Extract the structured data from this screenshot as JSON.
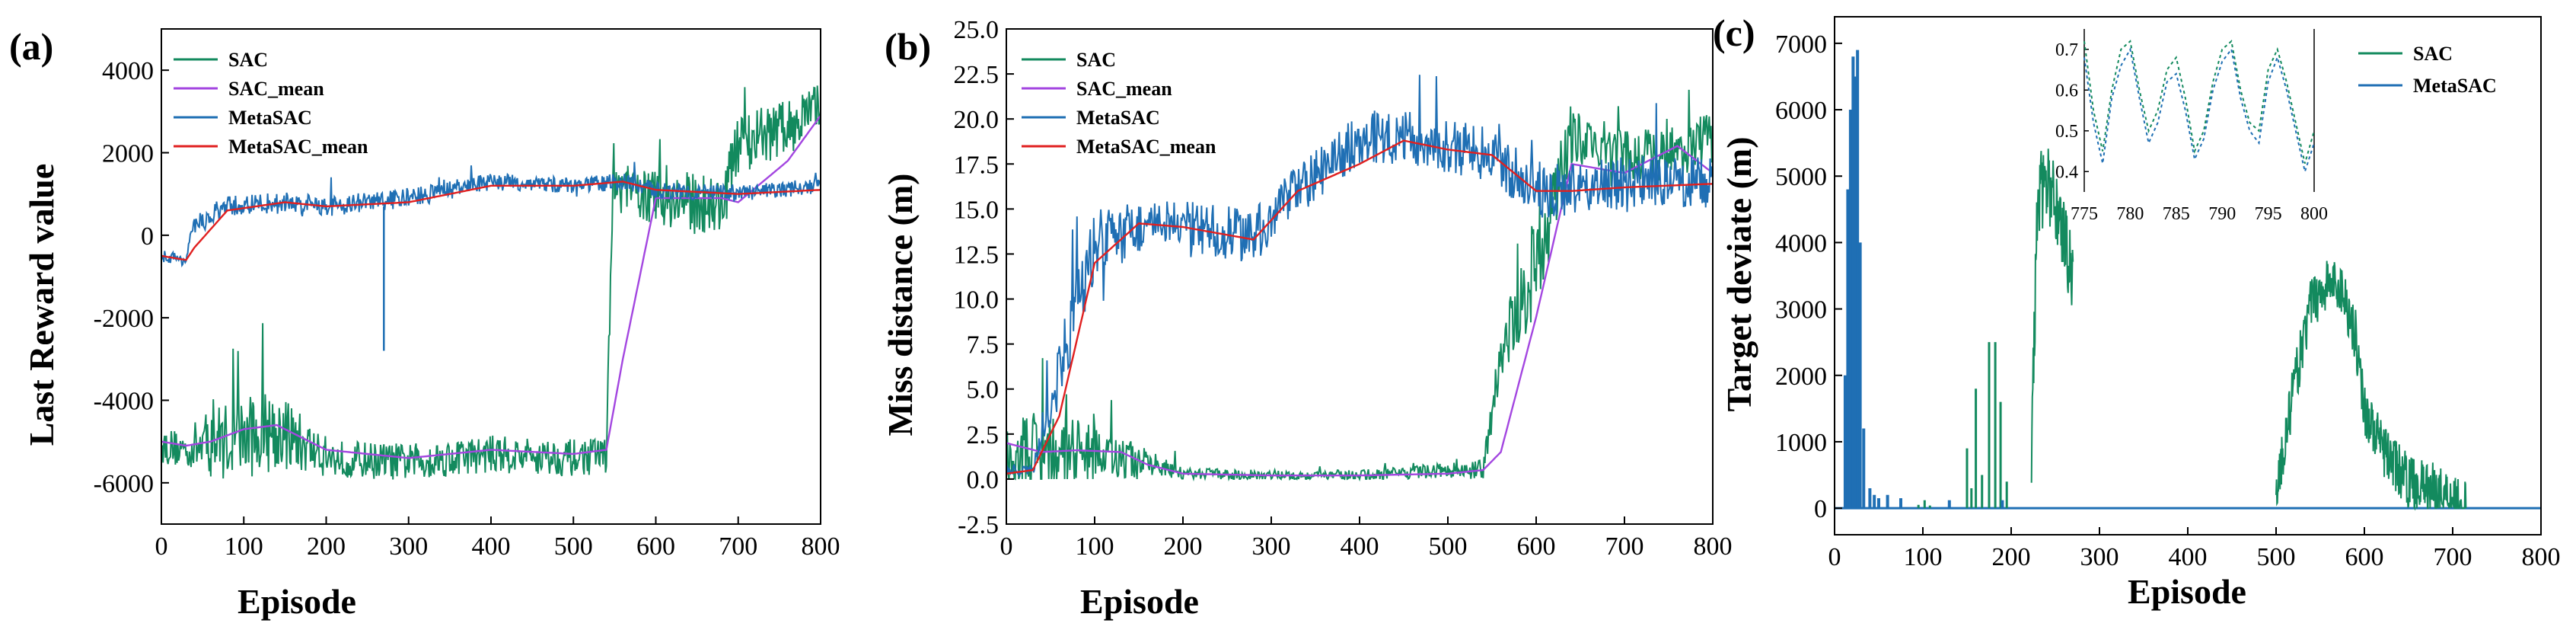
{
  "chart_data": [
    {
      "type": "line",
      "panel_label": "(a)",
      "title": "",
      "xlabel": "Episode",
      "ylabel": "Last Reward value",
      "xlim": [
        0,
        800
      ],
      "ylim": [
        -7000,
        5000
      ],
      "xticks": [
        "0",
        "100",
        "200",
        "300",
        "400",
        "500",
        "600",
        "700",
        "800"
      ],
      "yticks": [
        "-6000",
        "-4000",
        "-2000",
        "0",
        "2000",
        "4000"
      ],
      "legend_position": "top-left",
      "series": [
        {
          "name": "SAC",
          "color": "#138a5e",
          "kind": "noisy",
          "x": [
            0,
            30,
            60,
            100,
            140,
            200,
            300,
            400,
            500,
            540,
            548,
            560,
            600,
            680,
            700,
            760,
            800
          ],
          "values": [
            -5100,
            -5200,
            -5000,
            -4900,
            -4700,
            -5400,
            -5500,
            -5300,
            -5400,
            -5300,
            1100,
            1100,
            900,
            700,
            2200,
            2600,
            3200
          ],
          "noise": [
            450,
            450,
            900,
            1000,
            1000,
            450,
            450,
            450,
            450,
            450,
            500,
            600,
            700,
            800,
            700,
            700,
            500
          ]
        },
        {
          "name": "SAC_mean",
          "color": "#a346e0",
          "kind": "smooth",
          "x": [
            0,
            30,
            60,
            100,
            140,
            200,
            300,
            400,
            500,
            540,
            560,
            600,
            680,
            700,
            760,
            800
          ],
          "values": [
            -5000,
            -5100,
            -5000,
            -4700,
            -4600,
            -5200,
            -5400,
            -5200,
            -5300,
            -5200,
            -3000,
            900,
            900,
            800,
            1800,
            2900
          ]
        },
        {
          "name": "MetaSAC",
          "color": "#1f6fb4",
          "kind": "noisy",
          "x": [
            0,
            30,
            40,
            80,
            150,
            200,
            300,
            400,
            500,
            560,
            600,
            700,
            800
          ],
          "values": [
            -500,
            -600,
            200,
            700,
            800,
            700,
            900,
            1300,
            1200,
            1300,
            1100,
            1000,
            1200
          ],
          "noise": [
            150,
            150,
            250,
            250,
            250,
            250,
            250,
            200,
            200,
            200,
            200,
            200,
            200
          ]
        },
        {
          "name": "MetaSAC_mean",
          "color": "#e02020",
          "kind": "smooth",
          "x": [
            0,
            30,
            40,
            80,
            150,
            200,
            300,
            400,
            500,
            560,
            600,
            700,
            800
          ],
          "values": [
            -500,
            -600,
            -300,
            600,
            800,
            700,
            800,
            1200,
            1200,
            1300,
            1100,
            1000,
            1100
          ]
        }
      ]
    },
    {
      "type": "line",
      "panel_label": "(b)",
      "title": "",
      "xlabel": "Episode",
      "ylabel": "Miss distance (m)",
      "xlim": [
        0,
        800
      ],
      "ylim": [
        -2.5,
        25
      ],
      "xticks": [
        "0",
        "100",
        "200",
        "300",
        "400",
        "500",
        "600",
        "700",
        "800"
      ],
      "yticks": [
        "-2.5",
        "0.0",
        "2.5",
        "5.0",
        "7.5",
        "10.0",
        "12.5",
        "15.0",
        "17.5",
        "20.0",
        "22.5",
        "25.0"
      ],
      "legend_position": "top-left",
      "series": [
        {
          "name": "SAC",
          "color": "#138a5e",
          "kind": "noisy",
          "x": [
            0,
            40,
            80,
            130,
            200,
            300,
            400,
            500,
            540,
            560,
            600,
            640,
            700,
            760,
            800
          ],
          "values": [
            1.5,
            1.2,
            1.5,
            1.2,
            0.3,
            0.2,
            0.2,
            0.5,
            0.5,
            7,
            12,
            19,
            18,
            18,
            19
          ],
          "noise": [
            2.5,
            2.5,
            2,
            1.2,
            0.3,
            0.3,
            0.3,
            0.4,
            0.6,
            1.5,
            3,
            1.5,
            1.5,
            1.5,
            1.5
          ]
        },
        {
          "name": "SAC_mean",
          "color": "#a346e0",
          "kind": "smooth",
          "x": [
            0,
            40,
            80,
            130,
            160,
            200,
            300,
            400,
            500,
            540,
            560,
            600,
            640,
            700,
            760,
            800
          ],
          "values": [
            2.0,
            1.5,
            1.6,
            1.5,
            0.8,
            0.3,
            0.2,
            0.2,
            0.3,
            0.5,
            1.5,
            9,
            17.5,
            17,
            18.5,
            17
          ]
        },
        {
          "name": "MetaSAC",
          "color": "#1f6fb4",
          "kind": "noisy",
          "x": [
            0,
            30,
            60,
            100,
            150,
            200,
            280,
            330,
            400,
            450,
            500,
            550,
            600,
            640,
            700,
            800
          ],
          "values": [
            0.5,
            0.5,
            6,
            13,
            14,
            14,
            13.5,
            16,
            19,
            19,
            18.5,
            18,
            16,
            16,
            16.5,
            16.5
          ],
          "noise": [
            0.3,
            0.3,
            2,
            2,
            1.5,
            1.5,
            1.5,
            1.5,
            1.5,
            1.5,
            1.5,
            1.5,
            1.5,
            1.5,
            1.5,
            1.5
          ]
        },
        {
          "name": "MetaSAC_mean",
          "color": "#e02020",
          "kind": "smooth",
          "x": [
            0,
            30,
            60,
            100,
            150,
            200,
            280,
            330,
            400,
            450,
            500,
            550,
            600,
            640,
            700,
            800
          ],
          "values": [
            0.3,
            0.5,
            3.5,
            12,
            14.2,
            14,
            13.3,
            16,
            17.5,
            18.8,
            18.3,
            18,
            16,
            16,
            16.2,
            16.4
          ]
        }
      ]
    },
    {
      "type": "line",
      "panel_label": "(c)",
      "title": "",
      "xlabel": "Episode",
      "ylabel": "Target deviate (m)",
      "xlim": [
        0,
        800
      ],
      "ylim": [
        -400,
        7400
      ],
      "xticks": [
        "0",
        "100",
        "200",
        "300",
        "400",
        "500",
        "600",
        "700",
        "800"
      ],
      "yticks": [
        "0",
        "1000",
        "2000",
        "3000",
        "4000",
        "5000",
        "6000",
        "7000"
      ],
      "legend_position": "top-right",
      "series": [
        {
          "name": "SAC",
          "color": "#138a5e",
          "kind": "spikes"
        },
        {
          "name": "MetaSAC",
          "color": "#1f6fb4",
          "kind": "spikes"
        }
      ],
      "sac_spikes": [
        [
          95,
          50
        ],
        [
          102,
          120
        ],
        [
          108,
          40
        ],
        [
          150,
          900
        ],
        [
          155,
          300
        ],
        [
          160,
          1800
        ],
        [
          167,
          500
        ],
        [
          175,
          2500
        ],
        [
          182,
          2500
        ],
        [
          188,
          1600
        ],
        [
          195,
          400
        ]
      ],
      "sac_bursts": [
        {
          "x": [
            223,
            230,
            240,
            250,
            258,
            265,
            270
          ],
          "values": [
            800,
            4700,
            4900,
            4600,
            4200,
            3800,
            3500
          ],
          "noise": 600
        },
        {
          "x": [
            500,
            520,
            540,
            560,
            575,
            590,
            600,
            620,
            650,
            700,
            715
          ],
          "values": [
            200,
            1800,
            3100,
            3400,
            3300,
            2600,
            1500,
            900,
            400,
            200,
            0
          ],
          "noise": 400
        }
      ],
      "metasac_spikes": [
        [
          12,
          2000
        ],
        [
          15,
          4800
        ],
        [
          18,
          6000
        ],
        [
          21,
          6800
        ],
        [
          24,
          6500
        ],
        [
          26,
          6900
        ],
        [
          29,
          4000
        ],
        [
          33,
          1200
        ],
        [
          40,
          300
        ],
        [
          45,
          200
        ],
        [
          50,
          150
        ],
        [
          60,
          200
        ],
        [
          75,
          150
        ],
        [
          130,
          120
        ],
        [
          190,
          120
        ]
      ],
      "inset": {
        "xlim": [
          775,
          800
        ],
        "ylim": [
          0.35,
          0.75
        ],
        "xticks": [
          "775",
          "780",
          "785",
          "790",
          "795",
          "800"
        ],
        "yticks": [
          "0.4",
          "0.5",
          "0.6",
          "0.7"
        ],
        "series": [
          {
            "name": "SAC",
            "color": "#138a5e",
            "x": [
              775,
              776,
              777,
              778,
              779,
              780,
              781,
              782,
              783,
              784,
              785,
              786,
              787,
              788,
              789,
              790,
              791,
              792,
              793,
              794,
              795,
              796,
              797,
              798,
              799,
              800
            ],
            "values": [
              0.72,
              0.55,
              0.45,
              0.6,
              0.7,
              0.72,
              0.6,
              0.5,
              0.55,
              0.65,
              0.68,
              0.58,
              0.45,
              0.5,
              0.62,
              0.7,
              0.72,
              0.6,
              0.52,
              0.5,
              0.65,
              0.7,
              0.62,
              0.52,
              0.42,
              0.5
            ]
          },
          {
            "name": "MetaSAC",
            "color": "#1f6fb4",
            "x": [
              775,
              776,
              777,
              778,
              779,
              780,
              781,
              782,
              783,
              784,
              785,
              786,
              787,
              788,
              789,
              790,
              791,
              792,
              793,
              794,
              795,
              796,
              797,
              798,
              799,
              800
            ],
            "values": [
              0.68,
              0.52,
              0.42,
              0.58,
              0.66,
              0.7,
              0.58,
              0.47,
              0.52,
              0.62,
              0.64,
              0.55,
              0.43,
              0.48,
              0.6,
              0.67,
              0.7,
              0.58,
              0.5,
              0.47,
              0.62,
              0.68,
              0.6,
              0.5,
              0.4,
              0.47
            ]
          }
        ]
      }
    }
  ]
}
